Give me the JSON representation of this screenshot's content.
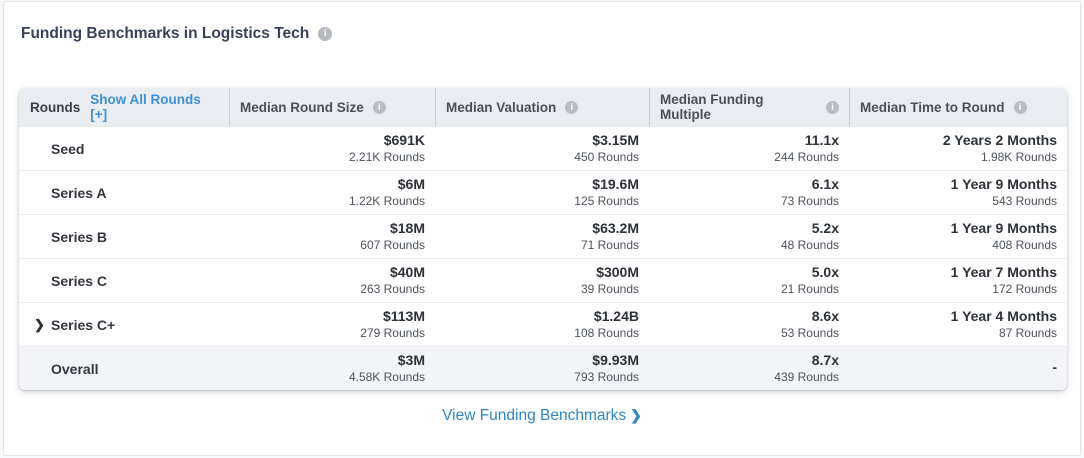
{
  "page": {
    "title": "Funding Benchmarks in Logistics Tech"
  },
  "colors": {
    "link_blue": "#3e8fd9",
    "footer_link_blue": "#2e86c6",
    "header_bg": "#e9edf2",
    "overall_row_bg": "#f2f4f7"
  },
  "table": {
    "header": {
      "rounds_label": "Rounds",
      "show_all_label": "Show All Rounds [+]",
      "columns": [
        "Median Round Size",
        "Median Valuation",
        "Median Funding Multiple",
        "Median Time to Round"
      ],
      "info_icon_glyph": "i"
    },
    "rows": [
      {
        "label": "Seed",
        "cells": [
          {
            "value": "$691K",
            "sub": "2.21K Rounds"
          },
          {
            "value": "$3.15M",
            "sub": "450 Rounds"
          },
          {
            "value": "11.1x",
            "sub": "244 Rounds"
          },
          {
            "value": "2 Years 2 Months",
            "sub": "1.98K Rounds"
          }
        ]
      },
      {
        "label": "Series A",
        "cells": [
          {
            "value": "$6M",
            "sub": "1.22K Rounds"
          },
          {
            "value": "$19.6M",
            "sub": "125 Rounds"
          },
          {
            "value": "6.1x",
            "sub": "73 Rounds"
          },
          {
            "value": "1 Year 9 Months",
            "sub": "543 Rounds"
          }
        ]
      },
      {
        "label": "Series B",
        "cells": [
          {
            "value": "$18M",
            "sub": "607 Rounds"
          },
          {
            "value": "$63.2M",
            "sub": "71 Rounds"
          },
          {
            "value": "5.2x",
            "sub": "48 Rounds"
          },
          {
            "value": "1 Year 9 Months",
            "sub": "408 Rounds"
          }
        ]
      },
      {
        "label": "Series C",
        "cells": [
          {
            "value": "$40M",
            "sub": "263 Rounds"
          },
          {
            "value": "$300M",
            "sub": "39 Rounds"
          },
          {
            "value": "5.0x",
            "sub": "21 Rounds"
          },
          {
            "value": "1 Year 7 Months",
            "sub": "172 Rounds"
          }
        ]
      },
      {
        "label": "Series C+",
        "expand_chevron": "❯",
        "cells": [
          {
            "value": "$113M",
            "sub": "279 Rounds"
          },
          {
            "value": "$1.24B",
            "sub": "108 Rounds"
          },
          {
            "value": "8.6x",
            "sub": "53 Rounds"
          },
          {
            "value": "1 Year 4 Months",
            "sub": "87 Rounds"
          }
        ]
      },
      {
        "label": "Overall",
        "cells": [
          {
            "value": "$3M",
            "sub": "4.58K Rounds"
          },
          {
            "value": "$9.93M",
            "sub": "793 Rounds"
          },
          {
            "value": "8.7x",
            "sub": "439 Rounds"
          },
          {
            "value": "-",
            "sub": ""
          }
        ]
      }
    ]
  },
  "footer": {
    "link_label": "View Funding Benchmarks",
    "chevron": "❯"
  }
}
